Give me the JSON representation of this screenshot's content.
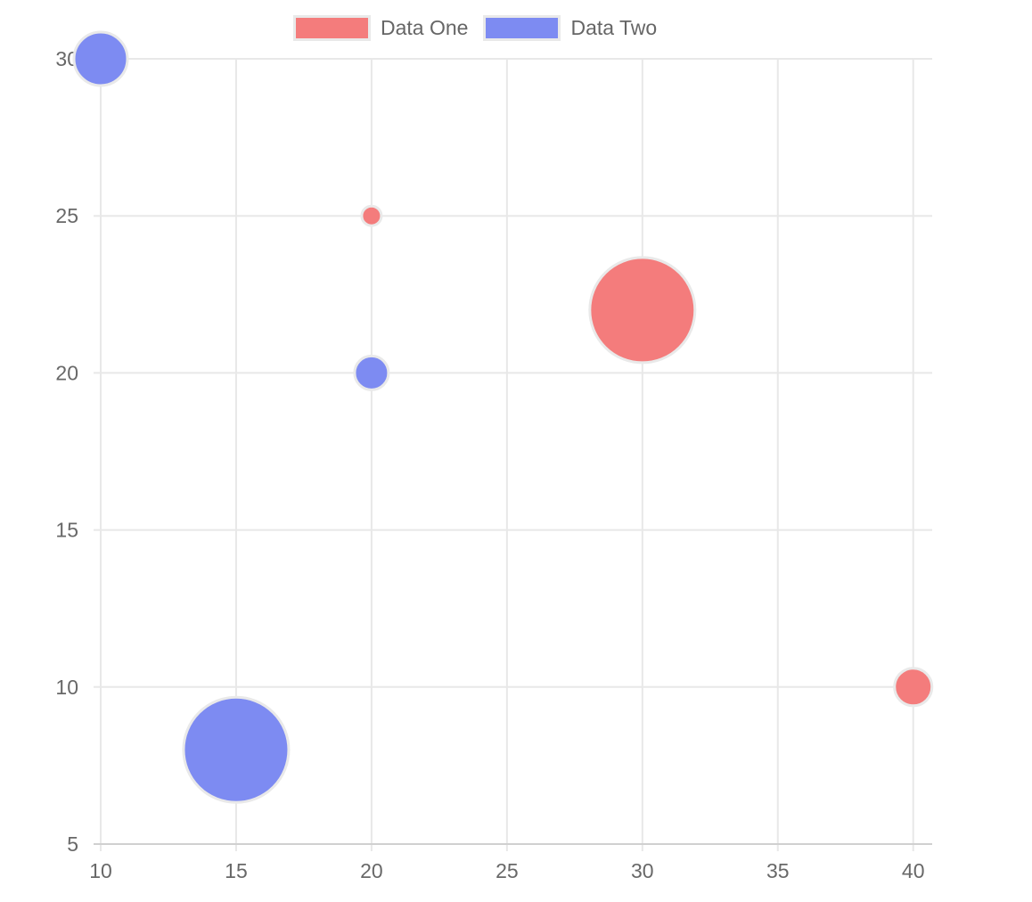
{
  "chart_data": {
    "type": "bubble",
    "title": "",
    "xlabel": "",
    "ylabel": "",
    "legend_position": "top",
    "grid": true,
    "xlim": [
      10,
      40.7
    ],
    "ylim": [
      5,
      30
    ],
    "x_ticks": [
      10,
      15,
      20,
      25,
      30,
      35,
      40
    ],
    "y_ticks": [
      5,
      10,
      15,
      20,
      25,
      30
    ],
    "series": [
      {
        "name": "Data One",
        "color": "#f47c7c",
        "points": [
          {
            "x": 20,
            "y": 25,
            "r": 11
          },
          {
            "x": 30,
            "y": 22,
            "r": 59
          },
          {
            "x": 40,
            "y": 10,
            "r": 21
          }
        ]
      },
      {
        "name": "Data Two",
        "color": "#7d8bf2",
        "points": [
          {
            "x": 10,
            "y": 30,
            "r": 30
          },
          {
            "x": 20,
            "y": 20,
            "r": 19
          },
          {
            "x": 15,
            "y": 8,
            "r": 59
          }
        ]
      }
    ]
  },
  "colors": {
    "background": "#ffffff",
    "grid_line": "#e8e8e8",
    "axis_line": "#d0d0d0",
    "tick_text": "#686868",
    "legend_text": "#666666",
    "bubble_border": "#e9e9e9",
    "legend_swatch_border": "#e9e9e9"
  }
}
